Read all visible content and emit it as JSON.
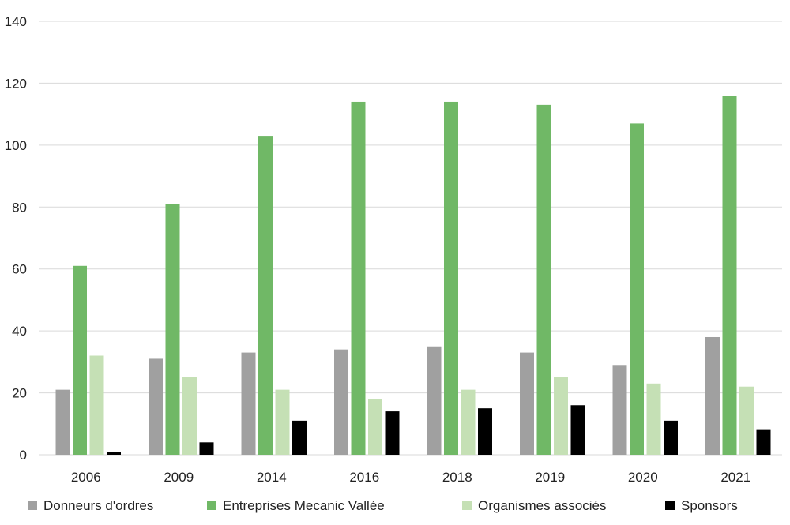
{
  "chart_data": {
    "type": "bar",
    "title": "",
    "xlabel": "",
    "ylabel": "",
    "ylim": [
      0,
      140
    ],
    "yticks": [
      0,
      20,
      40,
      60,
      80,
      100,
      120,
      140
    ],
    "grid": true,
    "legend_position": "bottom",
    "categories": [
      "2006",
      "2009",
      "2014",
      "2016",
      "2018",
      "2019",
      "2020",
      "2021"
    ],
    "series": [
      {
        "name": "Donneurs d'ordres",
        "color": "#a0a0a0",
        "values": [
          21,
          31,
          33,
          34,
          35,
          33,
          29,
          38
        ]
      },
      {
        "name": "Entreprises Mecanic Vallée",
        "color": "#70b866",
        "values": [
          61,
          81,
          103,
          114,
          114,
          113,
          107,
          116
        ]
      },
      {
        "name": "Organismes associés",
        "color": "#c5e0b5",
        "values": [
          32,
          25,
          21,
          18,
          21,
          25,
          23,
          22
        ]
      },
      {
        "name": "Sponsors",
        "color": "#000000",
        "values": [
          1,
          4,
          11,
          14,
          15,
          16,
          11,
          8
        ]
      }
    ]
  }
}
